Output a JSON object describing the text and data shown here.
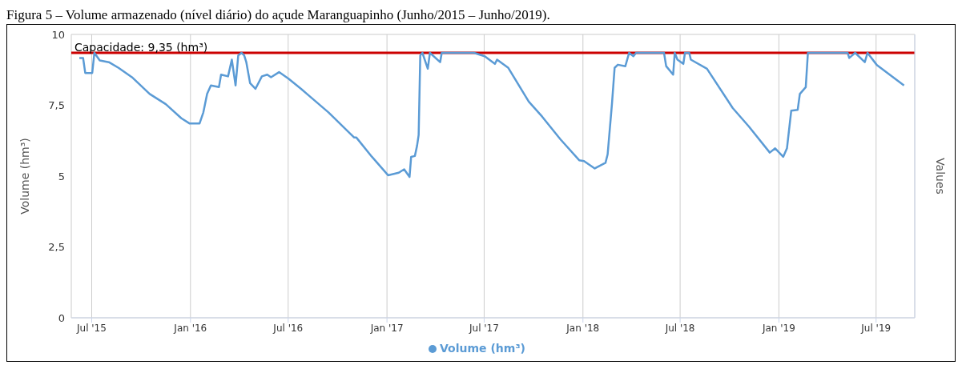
{
  "chart_data": {
    "type": "line",
    "title": "Figura 5 – Volume armazenado (nível diário) do açude Maranguapinho (Junho/2015 – Junho/2019).",
    "ylabel": "Volume (hm³)",
    "y2label": "Values",
    "x": [
      "2015-06-08",
      "2015-06-15",
      "2015-06-19",
      "2015-07-02",
      "2015-07-06",
      "2015-07-16",
      "2015-08-02",
      "2015-08-20",
      "2015-09-14",
      "2015-10-17",
      "2015-11-16",
      "2015-12-15",
      "2015-12-30",
      "2016-01-18",
      "2016-01-25",
      "2016-02-01",
      "2016-02-08",
      "2016-02-23",
      "2016-02-27",
      "2016-03-11",
      "2016-03-18",
      "2016-03-25",
      "2016-03-30",
      "2016-04-05",
      "2016-04-10",
      "2016-04-14",
      "2016-04-21",
      "2016-05-01",
      "2016-05-13",
      "2016-05-23",
      "2016-05-30",
      "2016-06-14",
      "2016-07-02",
      "2016-07-25",
      "2016-08-05",
      "2016-09-14",
      "2016-09-22",
      "2016-11-01",
      "2016-11-05",
      "2016-12-04",
      "2017-01-03",
      "2017-01-23",
      "2017-02-02",
      "2017-02-12",
      "2017-02-15",
      "2017-02-22",
      "2017-02-26",
      "2017-03-01",
      "2017-03-04",
      "2017-03-08",
      "2017-03-18",
      "2017-03-22",
      "2017-04-10",
      "2017-04-13",
      "2017-06-12",
      "2017-07-02",
      "2017-07-21",
      "2017-07-25",
      "2017-08-15",
      "2017-09-22",
      "2017-10-17",
      "2017-11-20",
      "2017-12-25",
      "2018-01-03",
      "2018-01-23",
      "2018-02-12",
      "2018-02-16",
      "2018-02-24",
      "2018-03-01",
      "2018-03-07",
      "2018-03-21",
      "2018-03-28",
      "2018-04-05",
      "2018-04-10",
      "2018-06-01",
      "2018-06-05",
      "2018-06-18",
      "2018-06-21",
      "2018-06-26",
      "2018-07-07",
      "2018-07-10",
      "2018-07-18",
      "2018-07-21",
      "2018-08-20",
      "2018-10-07",
      "2018-11-06",
      "2018-12-15",
      "2018-12-25",
      "2019-01-09",
      "2019-01-16",
      "2019-01-24",
      "2019-02-05",
      "2019-02-09",
      "2019-02-20",
      "2019-02-24",
      "2019-05-09",
      "2019-05-12",
      "2019-05-23",
      "2019-06-10",
      "2019-06-15",
      "2019-07-02",
      "2019-08-22"
    ],
    "series": [
      {
        "name": "Volume (hm³)",
        "color": "#5b9bd5",
        "values": [
          9.17,
          9.17,
          8.64,
          8.64,
          9.35,
          9.08,
          9.02,
          8.82,
          8.49,
          7.9,
          7.54,
          7.04,
          6.86,
          6.86,
          7.25,
          7.9,
          8.2,
          8.14,
          8.58,
          8.52,
          9.11,
          8.2,
          9.26,
          9.35,
          9.26,
          9.02,
          8.28,
          8.08,
          8.52,
          8.58,
          8.49,
          8.67,
          8.43,
          8.08,
          7.9,
          7.25,
          7.1,
          6.36,
          6.36,
          5.68,
          5.03,
          5.12,
          5.24,
          4.97,
          5.68,
          5.71,
          6.07,
          6.45,
          9.26,
          9.35,
          8.79,
          9.35,
          9.02,
          9.35,
          9.35,
          9.23,
          8.96,
          9.11,
          8.82,
          7.63,
          7.1,
          6.3,
          5.56,
          5.53,
          5.27,
          5.47,
          5.77,
          7.54,
          8.82,
          8.93,
          8.88,
          9.35,
          9.23,
          9.35,
          9.35,
          8.88,
          8.58,
          9.35,
          9.11,
          8.96,
          9.35,
          9.35,
          9.11,
          8.79,
          7.4,
          6.75,
          5.83,
          5.98,
          5.68,
          5.98,
          7.31,
          7.34,
          7.9,
          8.14,
          9.35,
          9.35,
          9.17,
          9.35,
          9.02,
          9.35,
          8.93,
          8.2
        ]
      }
    ],
    "xlim": [
      "2015-05-24",
      "2019-09-11"
    ],
    "xticks": [
      {
        "value": "2015-07-01",
        "label": "Jul '15"
      },
      {
        "value": "2016-01-01",
        "label": "Jan '16"
      },
      {
        "value": "2016-07-01",
        "label": "Jul '16"
      },
      {
        "value": "2017-01-01",
        "label": "Jan '17"
      },
      {
        "value": "2017-07-01",
        "label": "Jul '17"
      },
      {
        "value": "2018-01-01",
        "label": "Jan '18"
      },
      {
        "value": "2018-07-01",
        "label": "Jul '18"
      },
      {
        "value": "2019-01-01",
        "label": "Jan '19"
      },
      {
        "value": "2019-07-01",
        "label": "Jul '19"
      }
    ],
    "ylim": [
      0,
      10
    ],
    "yticks": [
      0,
      {
        "value": 2.5,
        "label": "2,5"
      },
      5,
      {
        "value": 7.5,
        "label": "7,5"
      },
      10
    ],
    "ref_lines": [
      {
        "axis": "y",
        "value": 9.35,
        "label": "Capacidade: 9,35 (hm³)",
        "color": "#cc0000"
      }
    ],
    "grid": true,
    "legend": "bottom"
  }
}
